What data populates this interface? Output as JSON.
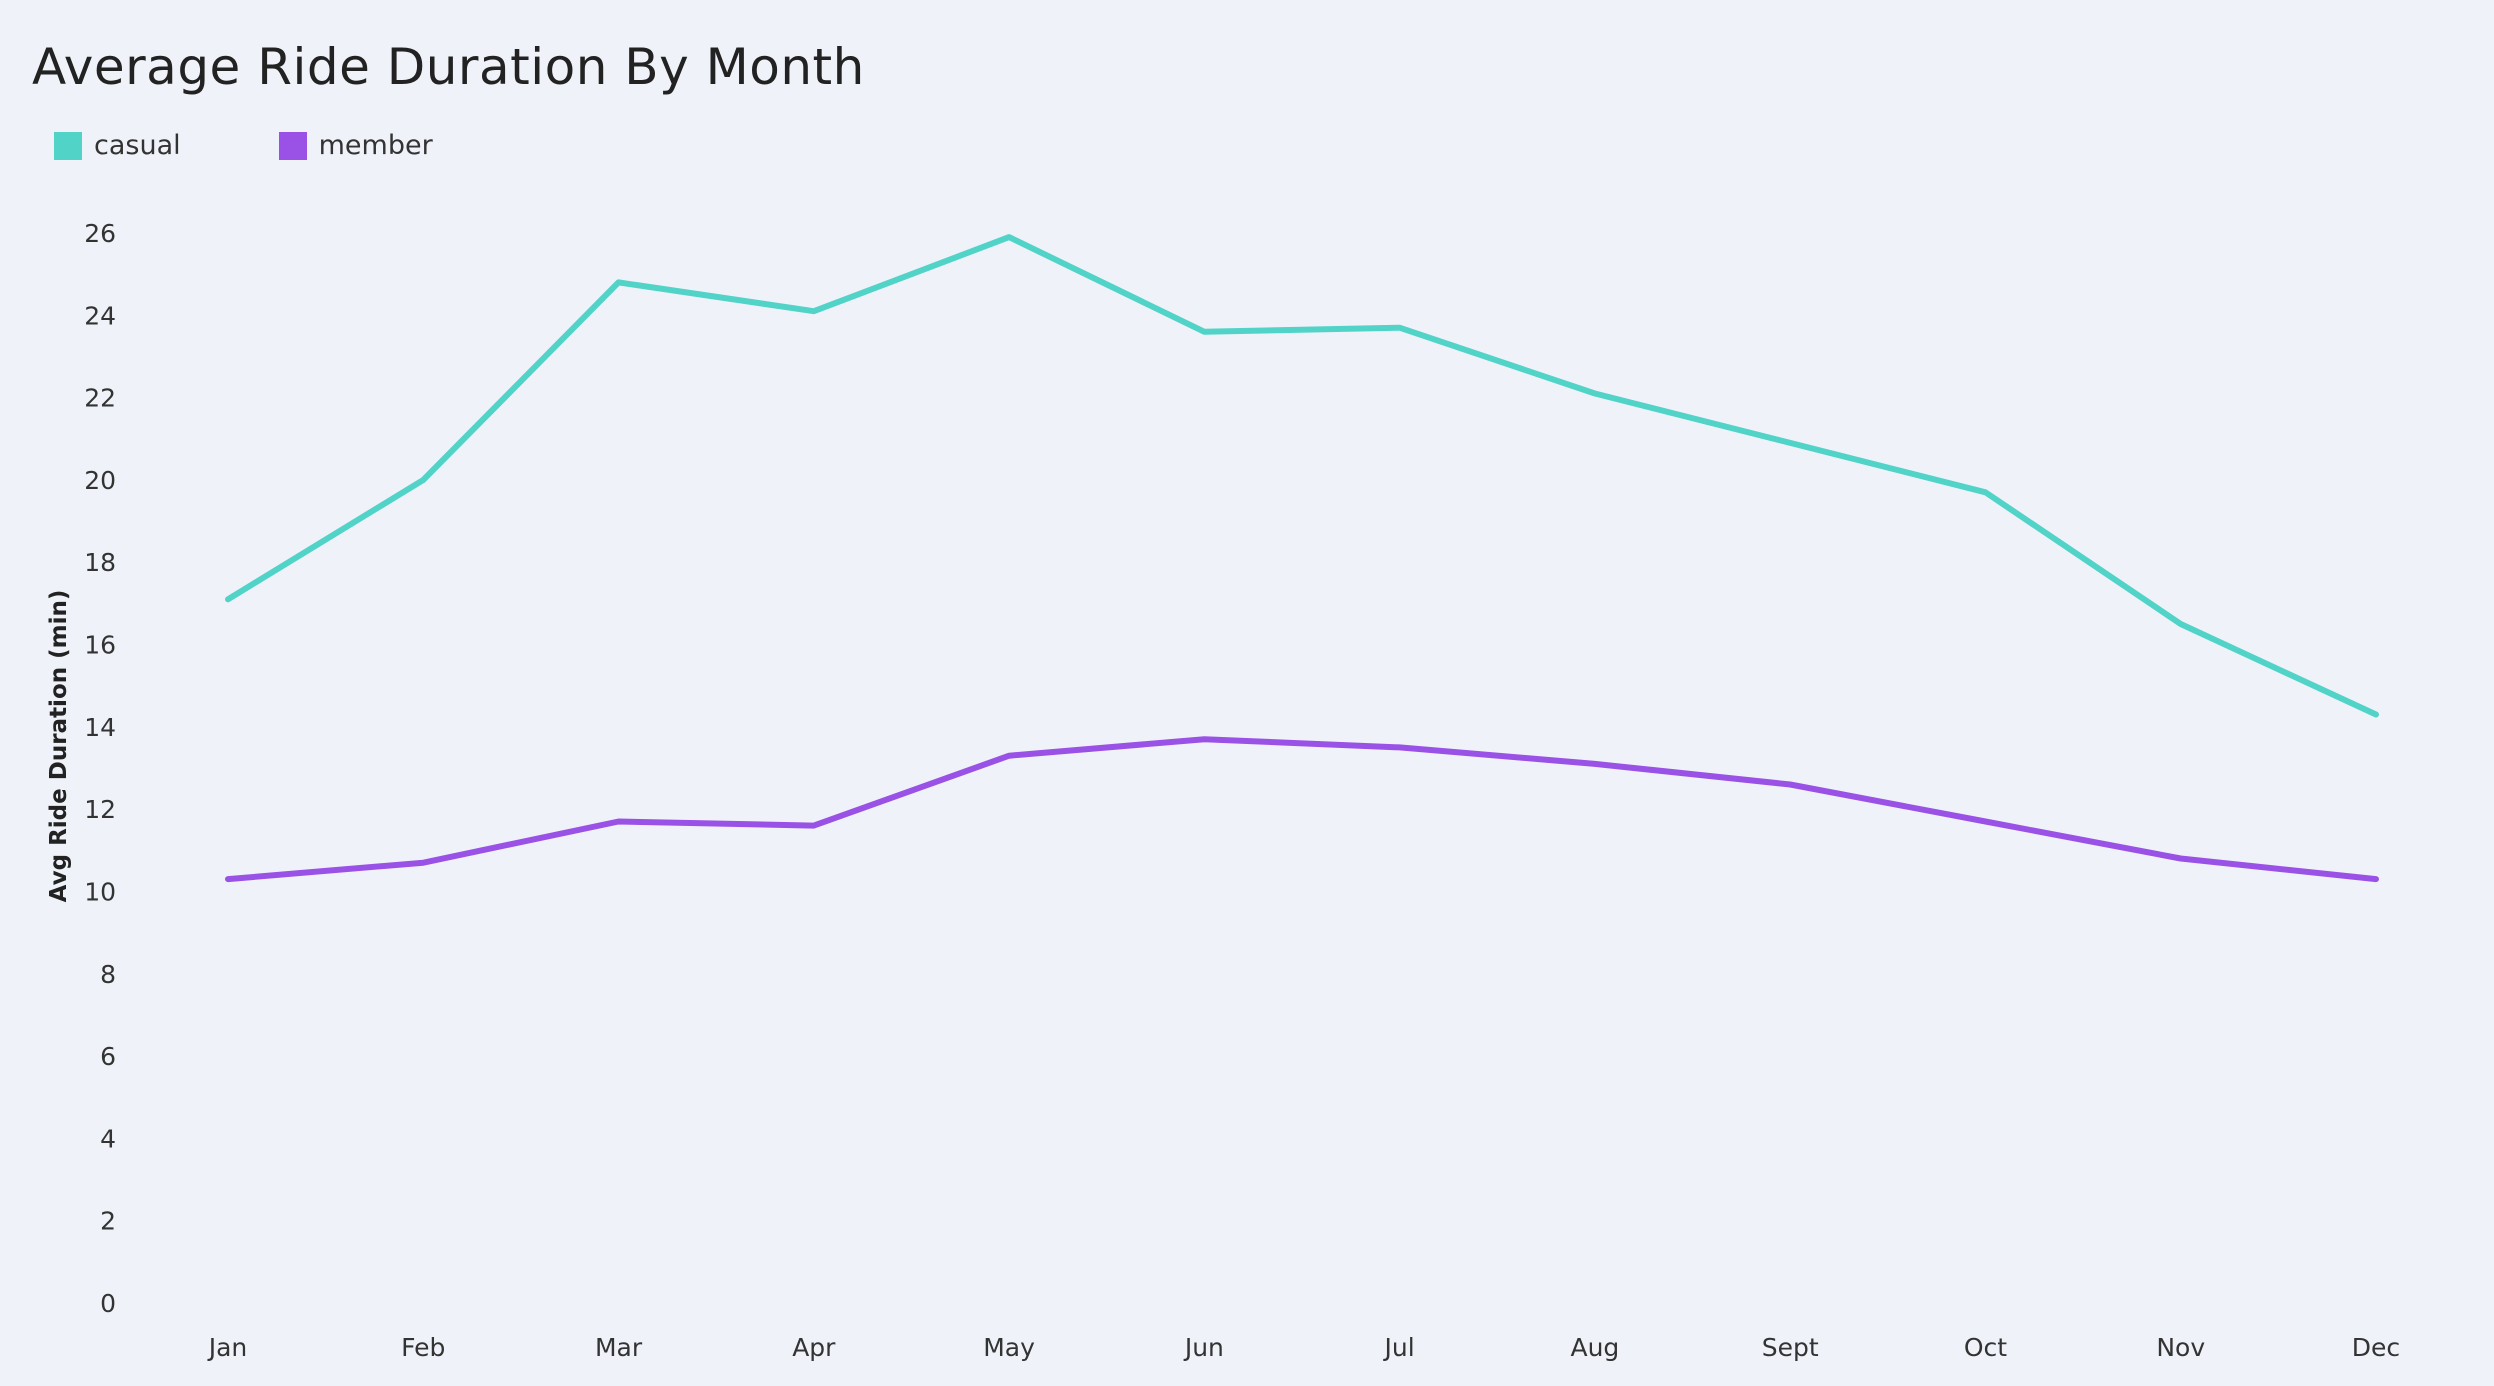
{
  "chart_data": {
    "type": "line",
    "title": "Average Ride Duration By Month",
    "xlabel": "",
    "ylabel": "Avg Ride Duration (min)",
    "categories": [
      "Jan",
      "Feb",
      "Mar",
      "Apr",
      "May",
      "Jun",
      "Jul",
      "Aug",
      "Sept",
      "Oct",
      "Nov",
      "Dec"
    ],
    "yticks": [
      0,
      2,
      4,
      6,
      8,
      10,
      12,
      14,
      16,
      18,
      20,
      22,
      24,
      26
    ],
    "ylim": [
      0,
      26
    ],
    "grid": false,
    "legend_position": "top-left",
    "series": [
      {
        "name": "casual",
        "color": "#52d3c8",
        "values": [
          17.1,
          20.0,
          24.8,
          24.1,
          25.9,
          23.6,
          23.7,
          22.1,
          20.9,
          19.7,
          16.5,
          14.3
        ]
      },
      {
        "name": "member",
        "color": "#9a52e6",
        "values": [
          10.3,
          10.7,
          11.7,
          11.6,
          13.3,
          13.7,
          13.5,
          13.1,
          12.6,
          11.7,
          10.8,
          10.3
        ]
      }
    ]
  }
}
